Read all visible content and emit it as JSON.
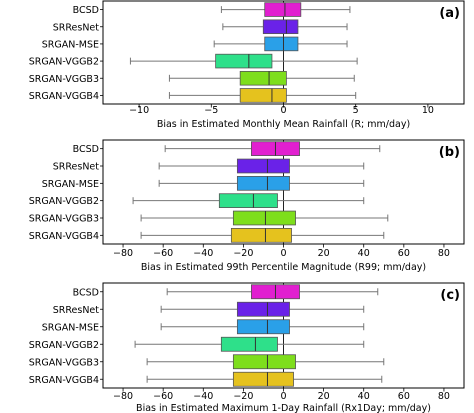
{
  "chart_data": [
    {
      "type": "box",
      "panel_label": "(a)",
      "xlabel": "Bias in Estimated Monthly Mean Rainfall (R; mm/day)",
      "xlim": [
        -12.5,
        12.5
      ],
      "xticks": [
        -10,
        -5,
        0,
        5,
        10
      ],
      "vline": 0,
      "grid": false,
      "categories": [
        "BCSD",
        "SRResNet",
        "SRGAN-MSE",
        "SRGAN-VGGB2",
        "SRGAN-VGGB3",
        "SRGAN-VGGB4"
      ],
      "boxes": [
        {
          "whislo": -4.3,
          "q1": -1.3,
          "med": 0.1,
          "q3": 1.2,
          "whishi": 4.6,
          "color": "#e11fd0"
        },
        {
          "whislo": -4.2,
          "q1": -1.4,
          "med": 0.2,
          "q3": 1.0,
          "whishi": 4.4,
          "color": "#6a22e8"
        },
        {
          "whislo": -4.8,
          "q1": -1.3,
          "med": 0.0,
          "q3": 1.0,
          "whishi": 4.4,
          "color": "#2aa0e8"
        },
        {
          "whislo": -10.6,
          "q1": -4.7,
          "med": -2.4,
          "q3": -0.8,
          "whishi": 5.1,
          "color": "#2ee08a"
        },
        {
          "whislo": -7.9,
          "q1": -3.0,
          "med": -1.0,
          "q3": 0.2,
          "whishi": 4.9,
          "color": "#7ede1c"
        },
        {
          "whislo": -7.9,
          "q1": -3.0,
          "med": -0.8,
          "q3": 0.2,
          "whishi": 5.0,
          "color": "#e5c21e"
        }
      ]
    },
    {
      "type": "box",
      "panel_label": "(b)",
      "xlabel": "Bias in Estimated 99th Percentile Magnitude (R99; mm/day)",
      "xlim": [
        -90,
        90
      ],
      "xticks": [
        -80,
        -60,
        -40,
        -20,
        0,
        20,
        40,
        60,
        80
      ],
      "vline": 0,
      "grid": false,
      "categories": [
        "BCSD",
        "SRResNet",
        "SRGAN-MSE",
        "SRGAN-VGGB2",
        "SRGAN-VGGB3",
        "SRGAN-VGGB4"
      ],
      "boxes": [
        {
          "whislo": -59,
          "q1": -16,
          "med": -4,
          "q3": 8,
          "whishi": 48,
          "color": "#e11fd0"
        },
        {
          "whislo": -62,
          "q1": -23,
          "med": -8,
          "q3": 3,
          "whishi": 40,
          "color": "#6a22e8"
        },
        {
          "whislo": -62,
          "q1": -23,
          "med": -8,
          "q3": 3,
          "whishi": 40,
          "color": "#2aa0e8"
        },
        {
          "whislo": -75,
          "q1": -32,
          "med": -15,
          "q3": -3,
          "whishi": 40,
          "color": "#2ee08a"
        },
        {
          "whislo": -71,
          "q1": -25,
          "med": -9,
          "q3": 6,
          "whishi": 52,
          "color": "#7ede1c"
        },
        {
          "whislo": -71,
          "q1": -26,
          "med": -9,
          "q3": 4,
          "whishi": 50,
          "color": "#e5c21e"
        }
      ]
    },
    {
      "type": "box",
      "panel_label": "(c)",
      "xlabel": "Bias in Estimated Maximum 1-Day Rainfall (Rx1Day; mm/day)",
      "xlim": [
        -90,
        90
      ],
      "xticks": [
        -80,
        -60,
        -40,
        -20,
        0,
        20,
        40,
        60,
        80
      ],
      "vline": 0,
      "grid": false,
      "categories": [
        "BCSD",
        "SRResNet",
        "SRGAN-MSE",
        "SRGAN-VGGB2",
        "SRGAN-VGGB3",
        "SRGAN-VGGB4"
      ],
      "boxes": [
        {
          "whislo": -58,
          "q1": -16,
          "med": -4,
          "q3": 8,
          "whishi": 47,
          "color": "#e11fd0"
        },
        {
          "whislo": -61,
          "q1": -23,
          "med": -8,
          "q3": 3,
          "whishi": 40,
          "color": "#6a22e8"
        },
        {
          "whislo": -61,
          "q1": -23,
          "med": -8,
          "q3": 3,
          "whishi": 40,
          "color": "#2aa0e8"
        },
        {
          "whislo": -74,
          "q1": -31,
          "med": -14,
          "q3": -3,
          "whishi": 40,
          "color": "#2ee08a"
        },
        {
          "whislo": -68,
          "q1": -25,
          "med": -8,
          "q3": 6,
          "whishi": 50,
          "color": "#7ede1c"
        },
        {
          "whislo": -68,
          "q1": -25,
          "med": -8,
          "q3": 5,
          "whishi": 49,
          "color": "#e5c21e"
        }
      ]
    }
  ]
}
